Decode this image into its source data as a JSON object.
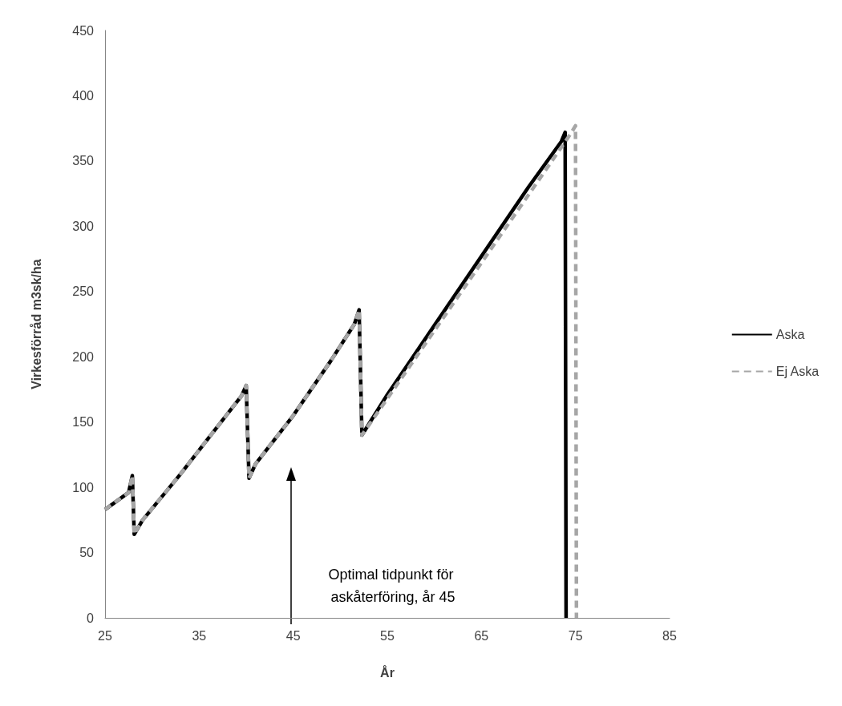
{
  "chart_data": {
    "type": "line",
    "xlabel": "År",
    "ylabel": "Virkesförråd m3sk/ha",
    "xlim": [
      25,
      85
    ],
    "xticks": [
      25,
      35,
      45,
      55,
      65,
      75,
      85
    ],
    "ylim": [
      0,
      450
    ],
    "yticks": [
      0,
      50,
      100,
      150,
      200,
      250,
      300,
      350,
      400,
      450
    ],
    "grid": false,
    "legend": "right",
    "marker": "none",
    "series": [
      {
        "name": "Aska",
        "color": "#000000",
        "line_style": "solid",
        "x": [
          25,
          27.5,
          27.9,
          28.1,
          29,
          33,
          37,
          39.5,
          40,
          40.3,
          41,
          45,
          49,
          51.5,
          52,
          52.3,
          55,
          60,
          65,
          70,
          73.5,
          73.9,
          74
        ],
        "values": [
          83,
          96,
          109,
          64,
          75,
          110,
          147,
          170,
          178,
          107,
          118,
          155,
          197,
          225,
          236,
          140,
          171,
          224,
          277,
          330,
          365,
          372,
          0
        ]
      },
      {
        "name": "Ej Aska",
        "color": "#a6a6a6",
        "line_style": "dashed",
        "x": [
          25,
          27.5,
          27.9,
          28.1,
          29,
          33,
          37,
          39.5,
          40,
          40.3,
          41,
          45,
          49,
          51.5,
          52,
          52.3,
          55,
          60,
          65,
          70,
          74.5,
          75,
          75.1
        ],
        "values": [
          83,
          96,
          109,
          64,
          75,
          110,
          147,
          170,
          178,
          107,
          118,
          155,
          197,
          225,
          236,
          140,
          168,
          220,
          272,
          324,
          371,
          377,
          0
        ]
      }
    ],
    "annotations": [
      "Optimal tidpunkt för askåterföring, år 45"
    ]
  }
}
